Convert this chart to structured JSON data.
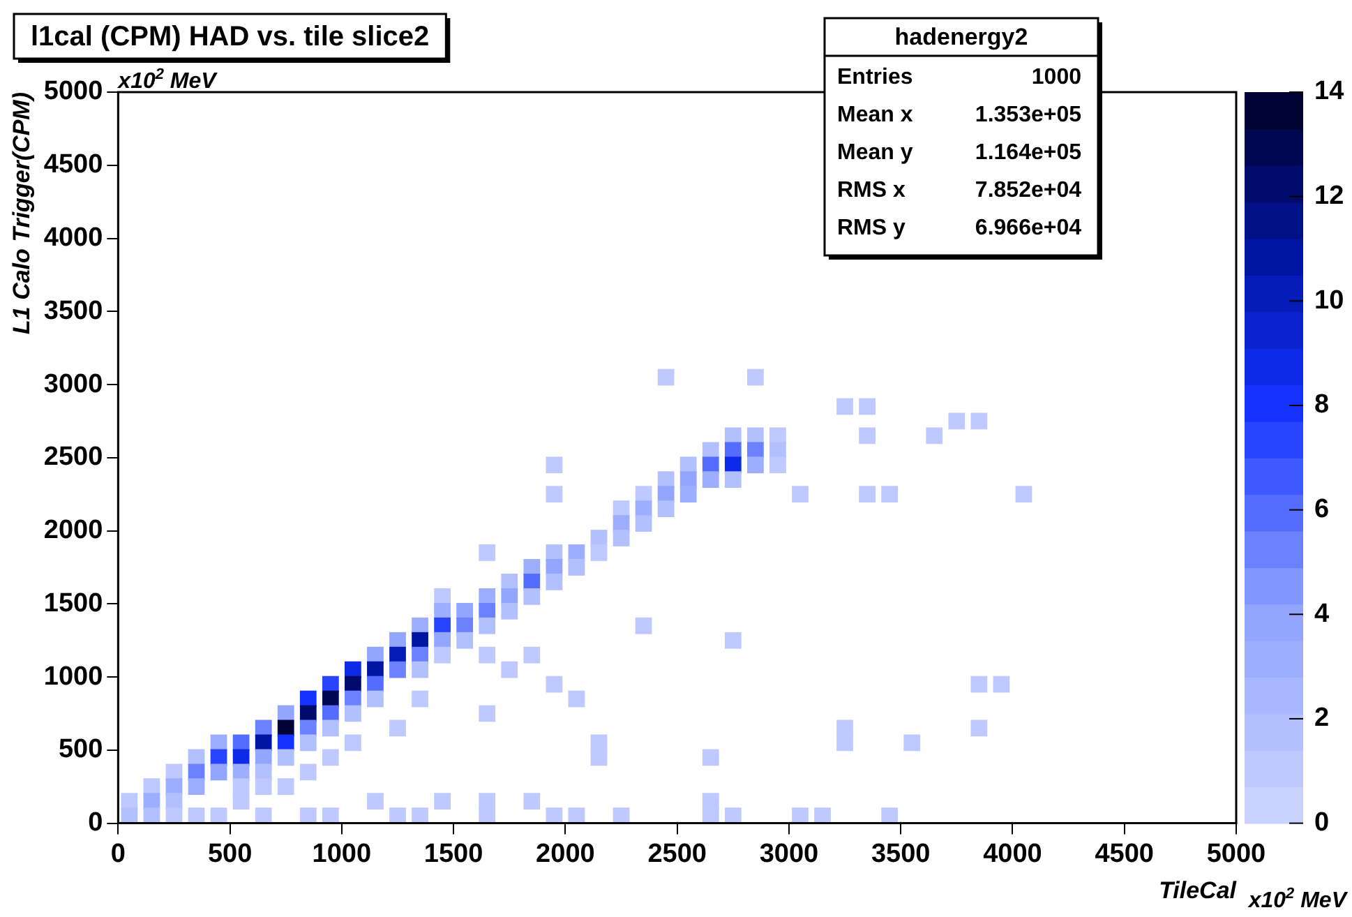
{
  "chart_data": {
    "type": "scatter",
    "title": "l1cal (CPM) HAD vs. tile slice2",
    "xlabel": "TileCal",
    "ylabel": "L1 Calo Trigger(CPM)",
    "annotations": [
      "hadenergy2",
      "Entries",
      "1000",
      "Mean x",
      "1.353e+05",
      "Mean y",
      "1.164e+05",
      "RMS x",
      "7.852e+04",
      "RMS y",
      "6.966e+04",
      "x10$^{2}$ MeV",
      "x10$^{2}$ MeV"
    ],
    "xlim": [
      0,
      5000
    ],
    "xticks": [
      0,
      500,
      1000,
      1500,
      2000,
      2500,
      3000,
      3500,
      4000,
      4500,
      5000
    ],
    "ylim": [
      0,
      5000
    ],
    "yticks": [
      0,
      500,
      1000,
      1500,
      2000,
      2500,
      3000,
      3500,
      4000,
      4500,
      5000
    ],
    "clim": [
      0,
      14
    ],
    "cticks": [
      0,
      2,
      4,
      6,
      8,
      10,
      12,
      14
    ],
    "marker": "square",
    "x": [
      2450,
      2850,
      3250,
      3350,
      3750,
      3850,
      2750,
      2850,
      2950,
      3350,
      3650,
      2650,
      2750,
      2850,
      2950,
      1950,
      2550,
      2650,
      2750,
      2850,
      2950,
      2450,
      2550,
      2650,
      2750,
      1950,
      2350,
      2450,
      2550,
      3050,
      3350,
      3450,
      4050,
      2250,
      2350,
      2450,
      2250,
      2350,
      2150,
      2250,
      1650,
      1950,
      2050,
      2150,
      1850,
      1950,
      2050,
      1750,
      1850,
      1950,
      1450,
      1650,
      1750,
      1850,
      1450,
      1550,
      1650,
      1750,
      1350,
      1450,
      1550,
      1650,
      2350,
      1250,
      1350,
      1450,
      1550,
      2750,
      1150,
      1250,
      1350,
      1450,
      1650,
      1850,
      1050,
      1150,
      1250,
      1350,
      1750,
      950,
      1050,
      1150,
      1950,
      3850,
      3950,
      850,
      950,
      1050,
      1150,
      1350,
      2050,
      750,
      850,
      950,
      1050,
      1650,
      650,
      750,
      850,
      950,
      1250,
      3250,
      3850,
      450,
      550,
      650,
      750,
      850,
      1050,
      2150,
      3250,
      3550,
      350,
      450,
      550,
      650,
      750,
      950,
      2150,
      2650,
      250,
      350,
      450,
      550,
      650,
      850,
      150,
      250,
      350,
      550,
      650,
      750,
      50,
      150,
      250,
      550,
      1150,
      1450,
      1650,
      1850,
      2650,
      50,
      150,
      250,
      350,
      450,
      650,
      850,
      950,
      1250,
      1350,
      1650,
      1950,
      2050,
      2250,
      2650,
      2750,
      3050,
      3150,
      3450
    ],
    "values": [
      3050,
      3050,
      2850,
      2850,
      2750,
      2750,
      2650,
      2650,
      2650,
      2650,
      2650,
      2550,
      2550,
      2550,
      2550,
      2450,
      2450,
      2450,
      2450,
      2450,
      2450,
      2350,
      2350,
      2350,
      2350,
      2250,
      2250,
      2250,
      2250,
      2250,
      2250,
      2250,
      2250,
      2150,
      2150,
      2150,
      2050,
      2050,
      1950,
      1950,
      1850,
      1850,
      1850,
      1850,
      1750,
      1750,
      1750,
      1650,
      1650,
      1650,
      1550,
      1550,
      1550,
      1550,
      1450,
      1450,
      1450,
      1450,
      1350,
      1350,
      1350,
      1350,
      1350,
      1250,
      1250,
      1250,
      1250,
      1250,
      1150,
      1150,
      1150,
      1150,
      1150,
      1150,
      1050,
      1050,
      1050,
      1050,
      1050,
      950,
      950,
      950,
      950,
      950,
      950,
      850,
      850,
      850,
      850,
      850,
      850,
      750,
      750,
      750,
      750,
      750,
      650,
      650,
      650,
      650,
      650,
      650,
      650,
      550,
      550,
      550,
      550,
      550,
      550,
      550,
      550,
      550,
      450,
      450,
      450,
      450,
      450,
      450,
      450,
      450,
      350,
      350,
      350,
      350,
      350,
      350,
      250,
      250,
      250,
      250,
      250,
      250,
      150,
      150,
      150,
      150,
      150,
      150,
      150,
      150,
      150,
      50,
      50,
      50,
      50,
      50,
      50,
      50,
      50,
      50,
      50,
      50,
      50,
      50,
      50,
      50,
      50,
      50,
      50,
      50
    ],
    "cvalues": [
      1,
      1,
      1,
      1,
      1,
      1,
      2,
      2,
      1,
      1,
      1,
      2,
      6,
      5,
      2,
      1,
      2,
      6,
      9,
      3,
      1,
      2,
      4,
      3,
      2,
      1,
      1,
      4,
      3,
      1,
      1,
      1,
      1,
      1,
      3,
      2,
      3,
      2,
      2,
      2,
      1,
      2,
      3,
      1,
      3,
      4,
      2,
      2,
      6,
      2,
      1,
      3,
      4,
      2,
      3,
      4,
      5,
      2,
      3,
      7,
      5,
      2,
      1,
      4,
      11,
      4,
      2,
      1,
      4,
      10,
      5,
      1,
      1,
      1,
      9,
      11,
      5,
      2,
      1,
      7,
      12,
      6,
      1,
      1,
      1,
      8,
      13,
      5,
      2,
      1,
      1,
      4,
      12,
      6,
      2,
      1,
      5,
      14,
      5,
      2,
      1,
      1,
      1,
      3,
      6,
      11,
      8,
      2,
      1,
      1,
      1,
      1,
      2,
      7,
      9,
      4,
      2,
      1,
      1,
      1,
      1,
      5,
      4,
      3,
      2,
      1,
      1,
      3,
      3,
      1,
      1,
      1,
      1,
      3,
      2,
      1,
      1,
      1,
      1,
      1,
      1,
      2,
      2,
      1,
      1,
      1,
      1,
      1,
      1,
      1,
      1,
      1,
      1,
      1,
      1,
      1,
      1,
      1,
      1,
      1
    ]
  }
}
